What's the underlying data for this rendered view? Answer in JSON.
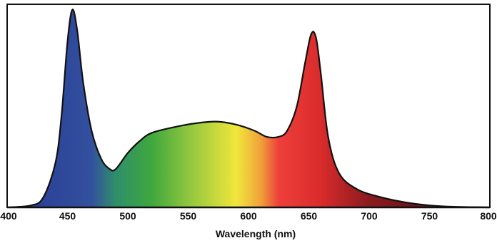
{
  "chart_data": {
    "type": "area",
    "title": "",
    "xlabel": "Wavelength (nm)",
    "ylabel": "",
    "xlim": [
      400,
      800
    ],
    "ylim": [
      0,
      1
    ],
    "grid": false,
    "x_ticks": [
      "400",
      "450",
      "500",
      "550",
      "600",
      "650",
      "700",
      "750",
      "800"
    ],
    "series": [
      {
        "points": [
          {
            "x": 400,
            "y": 0.0
          },
          {
            "x": 420,
            "y": 0.01
          },
          {
            "x": 430,
            "y": 0.05
          },
          {
            "x": 440,
            "y": 0.22
          },
          {
            "x": 445,
            "y": 0.45
          },
          {
            "x": 450,
            "y": 0.82
          },
          {
            "x": 454,
            "y": 0.98
          },
          {
            "x": 458,
            "y": 0.88
          },
          {
            "x": 463,
            "y": 0.62
          },
          {
            "x": 470,
            "y": 0.38
          },
          {
            "x": 478,
            "y": 0.24
          },
          {
            "x": 485,
            "y": 0.19
          },
          {
            "x": 490,
            "y": 0.19
          },
          {
            "x": 500,
            "y": 0.27
          },
          {
            "x": 510,
            "y": 0.33
          },
          {
            "x": 520,
            "y": 0.37
          },
          {
            "x": 540,
            "y": 0.4
          },
          {
            "x": 560,
            "y": 0.42
          },
          {
            "x": 575,
            "y": 0.425
          },
          {
            "x": 590,
            "y": 0.41
          },
          {
            "x": 605,
            "y": 0.38
          },
          {
            "x": 615,
            "y": 0.35
          },
          {
            "x": 625,
            "y": 0.35
          },
          {
            "x": 632,
            "y": 0.38
          },
          {
            "x": 640,
            "y": 0.5
          },
          {
            "x": 647,
            "y": 0.72
          },
          {
            "x": 652,
            "y": 0.86
          },
          {
            "x": 656,
            "y": 0.84
          },
          {
            "x": 660,
            "y": 0.66
          },
          {
            "x": 666,
            "y": 0.35
          },
          {
            "x": 675,
            "y": 0.17
          },
          {
            "x": 690,
            "y": 0.09
          },
          {
            "x": 710,
            "y": 0.05
          },
          {
            "x": 730,
            "y": 0.025
          },
          {
            "x": 750,
            "y": 0.01
          },
          {
            "x": 770,
            "y": 0.003
          },
          {
            "x": 800,
            "y": 0.0
          }
        ]
      }
    ],
    "gradient_stops": [
      {
        "x": 420,
        "color": "#2b3f96"
      },
      {
        "x": 470,
        "color": "#33509e"
      },
      {
        "x": 490,
        "color": "#2e8f6a"
      },
      {
        "x": 520,
        "color": "#3fa83d"
      },
      {
        "x": 550,
        "color": "#8ec63f"
      },
      {
        "x": 590,
        "color": "#f1e73c"
      },
      {
        "x": 610,
        "color": "#f0a23a"
      },
      {
        "x": 625,
        "color": "#ee3f3a"
      },
      {
        "x": 660,
        "color": "#d92b2b"
      },
      {
        "x": 700,
        "color": "#8a1a1f"
      },
      {
        "x": 760,
        "color": "#5a1216"
      }
    ],
    "colors": {
      "outline": "#111111",
      "frame": "#111111",
      "background": "#ffffff"
    }
  }
}
